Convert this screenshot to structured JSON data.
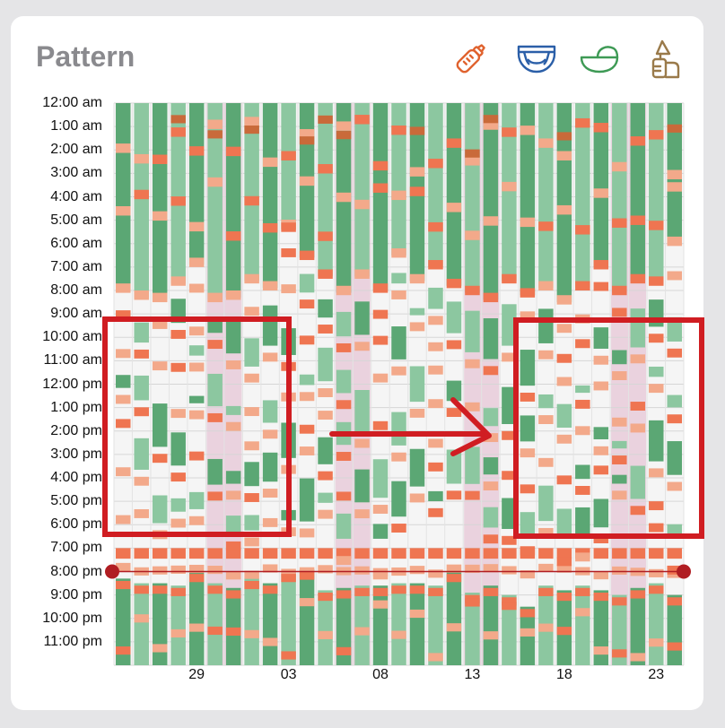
{
  "title": "Pattern",
  "icons": [
    {
      "name": "bottle-icon",
      "color": "#e0622e"
    },
    {
      "name": "diaper-icon",
      "color": "#2b5fa8"
    },
    {
      "name": "bassinet-icon",
      "color": "#3e9a55"
    },
    {
      "name": "breast-pump-icon",
      "color": "#9a7a4a"
    }
  ],
  "colors": {
    "sleep": "#5ba774",
    "sleep_light": "#8cc7a0",
    "feed": "#ef7551",
    "feed_light": "#f3a98a",
    "feed_dark": "#c96a3a",
    "highlight": "#e6c6d6",
    "annotation": "#d01d22",
    "background": "#f5f5f5"
  },
  "chart_data": {
    "type": "heatmap",
    "title": "Pattern",
    "y_tick_labels": [
      "12:00 am",
      "1:00 am",
      "2:00 am",
      "3:00 am",
      "4:00 am",
      "5:00 am",
      "6:00 am",
      "7:00 am",
      "8:00 am",
      "9:00 am",
      "10:00 am",
      "11:00 am",
      "12:00 pm",
      "1:00 pm",
      "2:00 pm",
      "3:00 pm",
      "4:00 pm",
      "5:00 pm",
      "6:00 pm",
      "7:00 pm",
      "8:00 pm",
      "9:00 pm",
      "10:00 pm",
      "11:00 pm"
    ],
    "x_tick_labels": [
      "29",
      "03",
      "08",
      "13",
      "18",
      "23"
    ],
    "x_tick_day_index": [
      4,
      9,
      14,
      19,
      24,
      29
    ],
    "days": 31,
    "highlighted_day_index": [
      5,
      12,
      19,
      27
    ],
    "reference_line_time": "8:00 pm",
    "night_sleep": [
      {
        "end": 8.0,
        "start": 20.3
      },
      {
        "end": 8.3,
        "start": 20.5
      },
      {
        "end": 8.4,
        "start": 20.5
      },
      {
        "end": 7.7,
        "start": 20.6
      },
      {
        "end": 6.9,
        "start": 20.0
      },
      {
        "end": 8.4,
        "start": 20.5
      },
      {
        "end": 8.3,
        "start": 20.7
      },
      {
        "end": 7.6,
        "start": 20.3
      },
      {
        "end": 7.9,
        "start": 20.5
      },
      {
        "end": 5.4,
        "start": 20.0
      },
      {
        "end": 6.6,
        "start": 19.9
      },
      {
        "end": 7.4,
        "start": 20.8
      },
      {
        "end": 8.1,
        "start": 20.7
      },
      {
        "end": 7.4,
        "start": 20.6
      },
      {
        "end": 8.0,
        "start": 20.6
      },
      {
        "end": 6.5,
        "start": 20.5
      },
      {
        "end": 7.6,
        "start": 20.5
      },
      {
        "end": 7.0,
        "start": 20.6
      },
      {
        "end": 7.8,
        "start": 20.0
      },
      {
        "end": 8.1,
        "start": 20.9
      },
      {
        "end": 8.4,
        "start": 20.6
      },
      {
        "end": 7.6,
        "start": 21.0
      },
      {
        "end": 8.2,
        "start": 21.5
      },
      {
        "end": 7.9,
        "start": 20.6
      },
      {
        "end": 8.5,
        "start": 20.8
      },
      {
        "end": 7.9,
        "start": 20.6
      },
      {
        "end": 7.0,
        "start": 20.8
      },
      {
        "end": 8.1,
        "start": 21.0
      },
      {
        "end": 7.6,
        "start": 20.7
      },
      {
        "end": 7.7,
        "start": 20.5
      },
      {
        "end": 6.0,
        "start": 21.0
      }
    ]
  }
}
